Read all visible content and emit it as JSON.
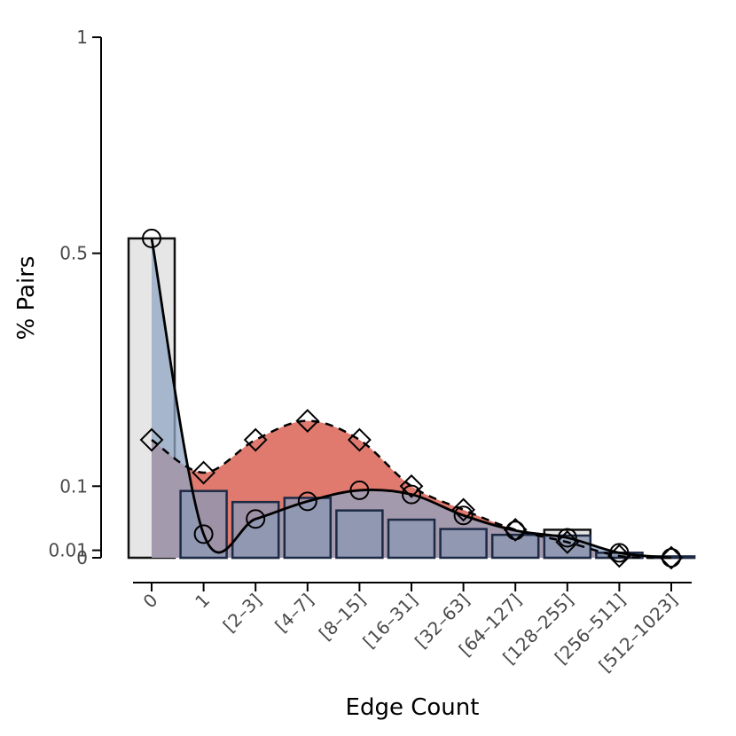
{
  "chart_data": {
    "type": "bar",
    "title": "",
    "xlabel": "Edge Count",
    "ylabel": "% Pairs",
    "y_scale": "log(1+y)",
    "ylim": [
      0,
      1
    ],
    "y_ticks": [
      {
        "value": 0,
        "label": "0"
      },
      {
        "value": 0.01,
        "label": "0.01"
      },
      {
        "value": 0.1,
        "label": "0.1"
      },
      {
        "value": 0.5,
        "label": "0.5"
      },
      {
        "value": 1,
        "label": "1"
      }
    ],
    "categories": [
      "0",
      "1",
      "[2–3]",
      "[4–7]",
      "[8–15]",
      "[16–31]",
      "[32–63]",
      "[64–127]",
      "[128–255]",
      "[256–511]",
      "[512–1023]"
    ],
    "grid": false,
    "legend": "none",
    "series": [
      {
        "kind": "bar",
        "style": "outline-grey",
        "values": [
          0.53,
          0.093,
          0.077,
          null,
          null,
          null,
          null,
          null,
          0.038,
          0.0067,
          0.0017
        ]
      },
      {
        "kind": "bar",
        "style": "filled-blue",
        "values": [
          null,
          0.093,
          0.077,
          0.083,
          0.065,
          0.052,
          0.039,
          0.031,
          0.03,
          0.0067,
          0.0017
        ]
      },
      {
        "kind": "line",
        "style": "solid-circle",
        "values": [
          0.53,
          0.032,
          0.053,
          0.078,
          0.094,
          0.088,
          0.058,
          0.037,
          0.027,
          0.0066,
          0.0
        ]
      },
      {
        "kind": "line",
        "style": "dashed-diamond",
        "values": [
          0.17,
          0.12,
          0.17,
          0.2,
          0.17,
          0.1,
          0.066,
          0.038,
          0.021,
          0.0024,
          0.0
        ]
      }
    ],
    "colors": {
      "bar_outline_fill": "#e6e6e6",
      "bar_outline_pink_fill": "#eed8d9",
      "bar_blue_fill": "#8d97b2",
      "bar_stroke": "#1d2a45",
      "area_red": "#e07a6e",
      "area_blue": "#8fa6c4",
      "area_overlap": "#94637b",
      "line": "#000000"
    }
  }
}
